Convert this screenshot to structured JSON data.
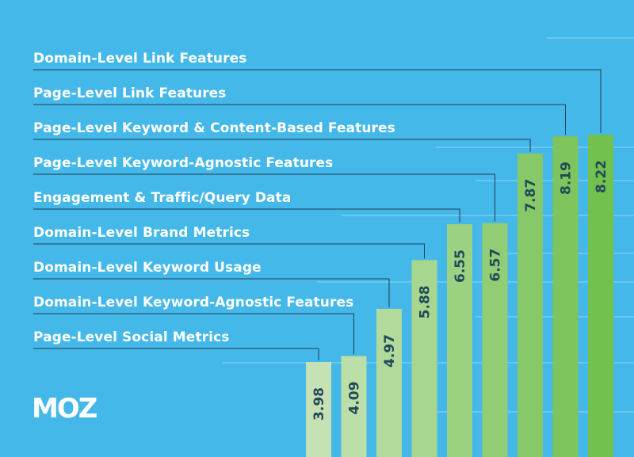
{
  "brand": {
    "logo_text": "MOZ"
  },
  "colors": {
    "background": "#45b8ea",
    "bar_light": "#c6e2b4",
    "bar_dark": "#72c14f",
    "value_text": "#22495a",
    "leader_line": "#1e3d4d",
    "guide_line": "#8fd6f5"
  },
  "chart_data": {
    "type": "bar",
    "orientation": "vertical",
    "title": "",
    "xlabel": "",
    "ylabel": "",
    "ylim": [
      0,
      9
    ],
    "grid": false,
    "legend": "none",
    "categories": [
      "Page-Level Social Metrics",
      "Domain-Level Keyword-Agnostic Features",
      "Domain-Level Keyword Usage",
      "Domain-Level Brand Metrics",
      "Engagement & Traffic/Query Data",
      "Page-Level Keyword-Agnostic Features",
      "Page-Level Keyword & Content-Based Features",
      "Page-Level Link Features",
      "Domain-Level Link Features"
    ],
    "values": [
      3.98,
      4.09,
      4.97,
      5.88,
      6.55,
      6.57,
      7.87,
      8.19,
      8.22
    ],
    "value_labels": [
      "3.98",
      "4.09",
      "4.97",
      "5.88",
      "6.55",
      "6.57",
      "7.87",
      "8.19",
      "8.22"
    ]
  }
}
